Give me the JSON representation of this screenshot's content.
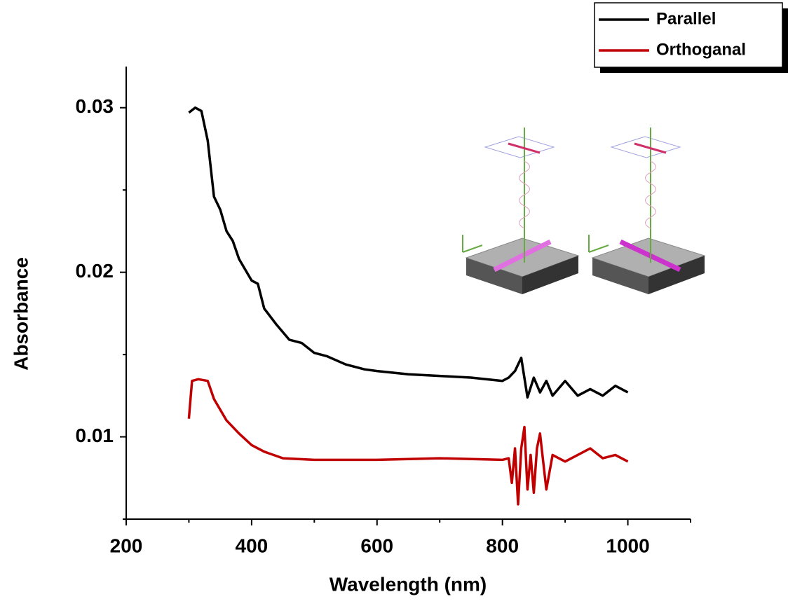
{
  "chart_data": {
    "type": "line",
    "x_label": "Wavelength (nm)",
    "y_label": "Absorbance",
    "xlim": [
      200,
      1100
    ],
    "xticks": [
      200,
      400,
      600,
      800,
      1000
    ],
    "xminorticks": [
      300,
      500,
      700,
      900,
      1100
    ],
    "ylim": [
      0.005,
      0.0325
    ],
    "yticks": [
      0.01,
      0.02,
      0.03
    ],
    "yminorticks": [
      0.005,
      0.015,
      0.025
    ],
    "legend": "top-right",
    "series": [
      {
        "name": "Parallel",
        "color": "#000000",
        "x": [
          300,
          310,
          320,
          330,
          340,
          350,
          360,
          370,
          380,
          400,
          410,
          420,
          440,
          460,
          480,
          500,
          520,
          550,
          580,
          600,
          650,
          700,
          750,
          800,
          810,
          820,
          830,
          840,
          850,
          860,
          870,
          880,
          900,
          920,
          940,
          960,
          980,
          1000
        ],
        "values": [
          0.0297,
          0.03,
          0.0298,
          0.028,
          0.0246,
          0.0238,
          0.0225,
          0.0219,
          0.0208,
          0.0195,
          0.0193,
          0.0178,
          0.0168,
          0.0159,
          0.0157,
          0.0151,
          0.0149,
          0.0144,
          0.0141,
          0.014,
          0.0138,
          0.0137,
          0.0136,
          0.0134,
          0.0136,
          0.014,
          0.0148,
          0.0124,
          0.0136,
          0.0127,
          0.0134,
          0.0125,
          0.0134,
          0.0125,
          0.0129,
          0.0125,
          0.0131,
          0.0127
        ]
      },
      {
        "name": "Orthoganal",
        "color": "#c00000",
        "x": [
          300,
          305,
          315,
          330,
          340,
          360,
          380,
          400,
          420,
          450,
          500,
          600,
          700,
          800,
          810,
          815,
          820,
          825,
          830,
          835,
          840,
          845,
          850,
          855,
          860,
          865,
          870,
          880,
          900,
          920,
          940,
          960,
          980,
          1000
        ],
        "values": [
          0.0111,
          0.0134,
          0.0135,
          0.0134,
          0.0123,
          0.011,
          0.0102,
          0.0095,
          0.0091,
          0.0087,
          0.0086,
          0.0086,
          0.0087,
          0.0086,
          0.0087,
          0.0072,
          0.0093,
          0.0059,
          0.0093,
          0.0106,
          0.0068,
          0.0089,
          0.0066,
          0.0093,
          0.0102,
          0.0085,
          0.0068,
          0.0089,
          0.0085,
          0.0089,
          0.0093,
          0.0087,
          0.0089,
          0.0085
        ]
      }
    ]
  }
}
